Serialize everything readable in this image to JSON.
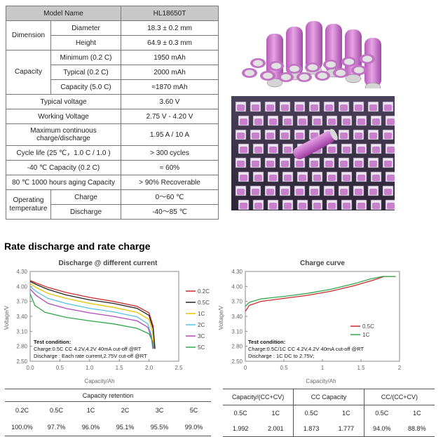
{
  "spec_table": {
    "header": {
      "left": "Model Name",
      "right": "HL18650T"
    },
    "dimension": {
      "label": "Dimension",
      "rows": [
        {
          "name": "Diameter",
          "value": "18.3 ± 0.2 mm"
        },
        {
          "name": "Height",
          "value": "64.9 ± 0.3 mm"
        }
      ]
    },
    "capacity": {
      "label": "Capacity",
      "rows": [
        {
          "name": "Minimum (0.2 C)",
          "value": "1950 mAh"
        },
        {
          "name": "Typical (0.2 C)",
          "value": "2000 mAh"
        },
        {
          "name": "Capacity (5.0 C)",
          "value": "≈1870 mAh"
        }
      ]
    },
    "single_rows": [
      {
        "name": "Typical voltage",
        "value": "3.60 V"
      },
      {
        "name": "Working Voltage",
        "value": "2.75 V - 4.20 V"
      },
      {
        "name": "Maximum continuous charge/discharge",
        "value": "1.95 A / 10 A"
      },
      {
        "name": "Cycle life (25 ℃，1.0 C / 1.0 )",
        "value": "> 300 cycles"
      },
      {
        "name": "-40 ℃ Capacity (0.2 C)",
        "value": "≈ 60%"
      },
      {
        "name": "80 ℃ 1000 hours aging Capacity",
        "value": "> 90% Recoverable"
      }
    ],
    "operating": {
      "label": "Operating temperature",
      "rows": [
        {
          "name": "Charge",
          "value": "0～60 ℃"
        },
        {
          "name": "Discharge",
          "value": "-40～85 ℃"
        }
      ]
    }
  },
  "section_title": "Rate discharge and rate charge",
  "chart_data": [
    {
      "type": "line",
      "title": "Discharge @ different current",
      "xlabel": "Capacity/Ah",
      "ylabel": "Voltage/V",
      "xlim": [
        0,
        2.5
      ],
      "ylim": [
        2.5,
        4.3
      ],
      "xticks": [
        "0.0",
        "0.5",
        "1.0",
        "1.5",
        "2.0",
        "2.5"
      ],
      "yticks": [
        "4.30",
        "4.00",
        "3.70",
        "3.40",
        "3.10",
        "2.80",
        "2.50"
      ],
      "grid": false,
      "note_title": "Test condition:",
      "note_lines": [
        "Charge:0.5C CC 4.2V,4.2V 40mA cut-off @RT",
        "Discharge : Each rate current,2.75V cut-off @RT"
      ],
      "series": [
        {
          "name": "0.2C",
          "color": "#cc2a2a",
          "x": [
            0,
            0.1,
            0.3,
            0.6,
            1.0,
            1.4,
            1.8,
            2.0,
            2.07,
            2.1
          ],
          "y": [
            4.12,
            4.07,
            3.98,
            3.88,
            3.78,
            3.7,
            3.6,
            3.47,
            3.2,
            2.75
          ]
        },
        {
          "name": "0.5C",
          "color": "#222222",
          "x": [
            0,
            0.1,
            0.3,
            0.6,
            1.0,
            1.4,
            1.8,
            2.0,
            2.07,
            2.1
          ],
          "y": [
            4.1,
            4.04,
            3.94,
            3.83,
            3.73,
            3.66,
            3.56,
            3.42,
            3.15,
            2.75
          ]
        },
        {
          "name": "1C",
          "color": "#e8c200",
          "x": [
            0,
            0.1,
            0.3,
            0.6,
            1.0,
            1.4,
            1.8,
            2.0,
            2.06,
            2.08
          ],
          "y": [
            4.06,
            3.98,
            3.86,
            3.76,
            3.66,
            3.58,
            3.48,
            3.34,
            3.08,
            2.75
          ]
        },
        {
          "name": "2C",
          "color": "#55c0e8",
          "x": [
            0,
            0.1,
            0.3,
            0.6,
            1.0,
            1.4,
            1.8,
            1.98,
            2.04,
            2.06
          ],
          "y": [
            4.0,
            3.9,
            3.76,
            3.66,
            3.56,
            3.49,
            3.39,
            3.25,
            3.02,
            2.75
          ]
        },
        {
          "name": "3C",
          "color": "#b04ab8",
          "x": [
            0,
            0.1,
            0.3,
            0.6,
            1.0,
            1.4,
            1.8,
            1.98,
            2.04,
            2.07
          ],
          "y": [
            3.95,
            3.82,
            3.66,
            3.56,
            3.47,
            3.4,
            3.31,
            3.18,
            2.98,
            2.75
          ]
        },
        {
          "name": "5C",
          "color": "#2fa84a",
          "x": [
            0,
            0.08,
            0.25,
            0.6,
            1.0,
            1.4,
            1.8,
            2.0,
            2.06,
            2.09
          ],
          "y": [
            3.85,
            3.62,
            3.48,
            3.38,
            3.31,
            3.25,
            3.16,
            3.05,
            2.9,
            2.75
          ]
        }
      ]
    },
    {
      "type": "line",
      "title": "Charge curve",
      "xlabel": "Capacity/Ah",
      "ylabel": "Voltage/V",
      "xlim": [
        0,
        2
      ],
      "ylim": [
        2.5,
        4.3
      ],
      "xticks": [
        "0",
        "0.5",
        "1",
        "1.5",
        "2"
      ],
      "yticks": [
        "4.30",
        "4.00",
        "3.70",
        "3.40",
        "3.10",
        "2.80",
        "2.50"
      ],
      "grid": false,
      "note_title": "Test condition:",
      "note_lines": [
        "Charge:0.5C/1C CC 4.2V,4.2V 40mA cut-off @RT",
        "Discharge : 1C DC to 2.75V;"
      ],
      "series": [
        {
          "name": "0.5C",
          "color": "#cc2a2a",
          "x": [
            0,
            0.05,
            0.2,
            0.5,
            0.8,
            1.1,
            1.4,
            1.65,
            1.8,
            1.95
          ],
          "y": [
            3.5,
            3.62,
            3.7,
            3.76,
            3.82,
            3.9,
            4.01,
            4.12,
            4.2,
            4.2
          ]
        },
        {
          "name": "1C",
          "color": "#2fa84a",
          "x": [
            0,
            0.05,
            0.2,
            0.5,
            0.8,
            1.1,
            1.4,
            1.62,
            1.78,
            1.95
          ],
          "y": [
            3.6,
            3.68,
            3.75,
            3.8,
            3.86,
            3.94,
            4.05,
            4.15,
            4.2,
            4.2
          ]
        }
      ]
    }
  ],
  "retention": {
    "title": "Capacity retention",
    "rates": [
      "0.2C",
      "0.5C",
      "1C",
      "2C",
      "3C",
      "5C"
    ],
    "values": [
      "100.0%",
      "97.7%",
      "96.0%",
      "95.1%",
      "95.5%",
      "99.0%"
    ]
  },
  "capacity_table": {
    "groups": [
      "Capacity/(CC+CV)",
      "CC Capacity",
      "CC/(CC+CV)"
    ],
    "rates": [
      "0.5C",
      "1C",
      "0.5C",
      "1C",
      "0.5C",
      "1C"
    ],
    "values": [
      "1.992",
      "2.001",
      "1.873",
      "1.777",
      "94.0%",
      "88.8%"
    ]
  }
}
